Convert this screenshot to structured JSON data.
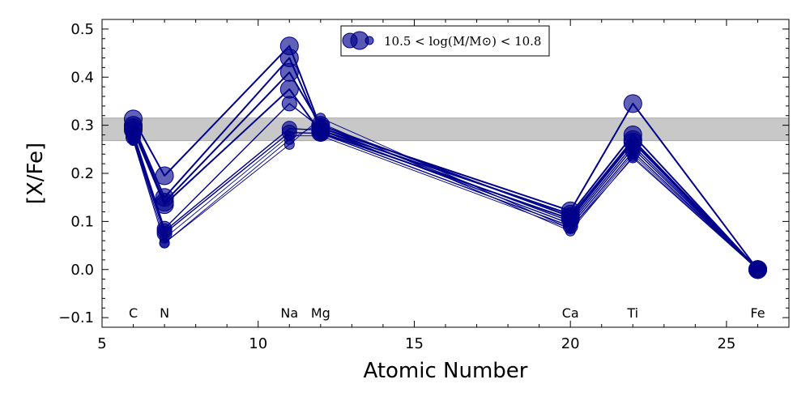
{
  "chart_data": {
    "type": "line",
    "xlabel": "Atomic Number",
    "ylabel": "[X/Fe]",
    "xlim": [
      5,
      27
    ],
    "ylim": [
      -0.12,
      0.52
    ],
    "xticks": [
      "5",
      "10",
      "15",
      "20",
      "25"
    ],
    "yticks": [
      "0.5",
      "0.4",
      "0.3",
      "0.2",
      "0.1",
      "0.0",
      "−0.1"
    ],
    "x": [
      6,
      7,
      11,
      12,
      20,
      22,
      26
    ],
    "element_labels": [
      "C",
      "N",
      "Na",
      "Mg",
      "Ca",
      "Ti",
      "Fe"
    ],
    "element_label_y": -0.09,
    "reference_band": [
      0.268,
      0.315
    ],
    "legend": {
      "label": "10.5 < log(M/M⊙) < 10.8",
      "position": "top-center"
    },
    "colors": {
      "series": "#00008b",
      "band": "#c8c8c8"
    },
    "series": [
      {
        "values": [
          0.313,
          0.195,
          0.465,
          0.295,
          0.122,
          0.345,
          0.0
        ],
        "marker": "large"
      },
      {
        "values": [
          0.3,
          0.15,
          0.44,
          0.29,
          0.115,
          0.28,
          0.0
        ],
        "marker": "large"
      },
      {
        "values": [
          0.295,
          0.14,
          0.41,
          0.3,
          0.11,
          0.27,
          0.0
        ],
        "marker": "large"
      },
      {
        "values": [
          0.29,
          0.135,
          0.375,
          0.285,
          0.105,
          0.265,
          0.0
        ],
        "marker": "large"
      },
      {
        "values": [
          0.285,
          0.085,
          0.345,
          0.295,
          0.1,
          0.258,
          0.0
        ],
        "marker": "medium"
      },
      {
        "values": [
          0.28,
          0.08,
          0.293,
          0.29,
          0.095,
          0.252,
          0.0
        ],
        "marker": "medium"
      },
      {
        "values": [
          0.275,
          0.075,
          0.285,
          0.283,
          0.09,
          0.245,
          0.0
        ],
        "marker": "medium"
      },
      {
        "values": [
          0.272,
          0.065,
          0.278,
          0.278,
          0.085,
          0.24,
          0.0
        ],
        "marker": "small"
      },
      {
        "values": [
          0.27,
          0.055,
          0.27,
          0.305,
          0.08,
          0.235,
          0.0
        ],
        "marker": "small"
      },
      {
        "values": [
          0.268,
          0.055,
          0.26,
          0.315,
          0.085,
          0.232,
          0.0
        ],
        "marker": "small"
      }
    ]
  }
}
